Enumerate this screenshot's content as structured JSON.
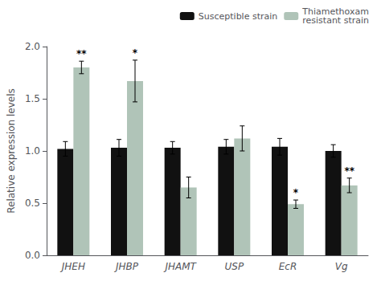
{
  "chart_data": {
    "type": "bar",
    "categories": [
      "JHEH",
      "JHBP",
      "JHAMT",
      "USP",
      "EcR",
      "Vg"
    ],
    "series": [
      {
        "name": "Susceptible strain",
        "color": "#111111",
        "values": [
          1.02,
          1.03,
          1.03,
          1.04,
          1.04,
          1.0
        ],
        "errors": [
          0.07,
          0.08,
          0.06,
          0.07,
          0.08,
          0.06
        ]
      },
      {
        "name": "Thiamethoxam\nresistant strain",
        "color": "#b0c4b8",
        "values": [
          1.8,
          1.67,
          0.65,
          1.12,
          0.49,
          0.67
        ],
        "errors": [
          0.06,
          0.2,
          0.1,
          0.12,
          0.04,
          0.07
        ],
        "annotations": [
          "**",
          "*",
          null,
          null,
          "*",
          "**"
        ]
      }
    ],
    "ylabel": "Relative expression levels",
    "ylim": [
      0.0,
      2.0
    ],
    "yticks": [
      {
        "value": 0.0,
        "label": "0.0"
      },
      {
        "value": 0.5,
        "label": "0.5"
      },
      {
        "value": 1.0,
        "label": "1.0"
      },
      {
        "value": 1.5,
        "label": "1.5"
      },
      {
        "value": 2.0,
        "label": "2.0"
      }
    ],
    "grid": false,
    "legend": "upper right"
  }
}
